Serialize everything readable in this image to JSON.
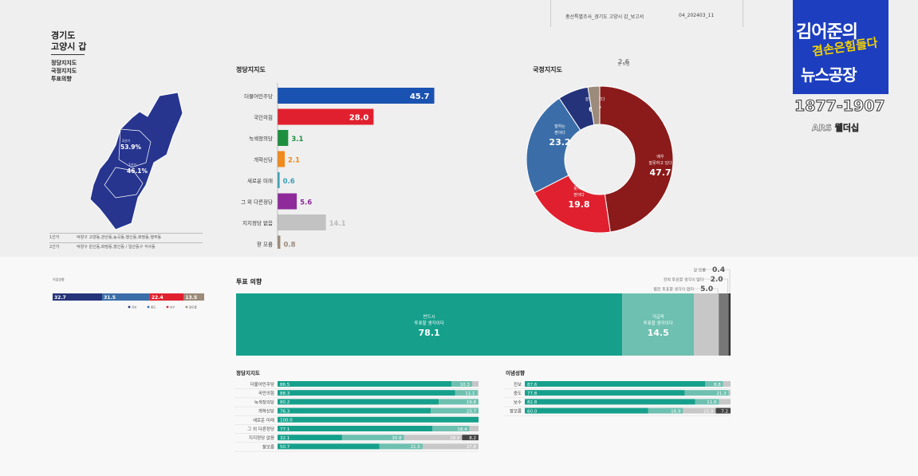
{
  "header": {
    "report_title": "총선특별조사_경기도 고양시 갑_보고서",
    "report_code": "04_202403_11"
  },
  "region": {
    "title_line1": "경기도",
    "title_line2": "고양시 갑",
    "sub_items": [
      "정당지지도",
      "국정지지도",
      "투표의향"
    ]
  },
  "map": {
    "labels": [
      {
        "name": "2선거",
        "value": "53.9%"
      },
      {
        "name": "1선거",
        "value": "46.1%"
      }
    ],
    "table": [
      {
        "col": "1선거",
        "desc": "덕양구 고양동,관산동,능곡동,행신동,화정동,행주동"
      },
      {
        "col": "2선거",
        "desc": "덕양구 원신동,화정동,행신동 / 일산동구 식사동"
      }
    ]
  },
  "logo": {
    "line1": "김어준의",
    "line2": "겸손은힘들다",
    "line3": "뉴스공장",
    "years": "1877-1907",
    "ars": "ARS 웰더십"
  },
  "colors": {
    "blue": "#1a52b2",
    "red": "#e0202e",
    "green": "#1e8f3e",
    "orange": "#f08a1c",
    "teal_small": "#3aa0b6",
    "purple": "#8e2a9a",
    "gray": "#c2c2c2",
    "brown": "#9c8a7a",
    "teal": "#16a08c",
    "light_teal": "#6ec0b0",
    "darkred": "#8b1a1a",
    "steelblue": "#3b6ea8",
    "navy": "#24337a"
  },
  "chart_data": [
    {
      "type": "bar",
      "title": "정당지지도",
      "orientation": "horizontal",
      "categories": [
        "더불어민주당",
        "국민의힘",
        "녹색정의당",
        "개혁신당",
        "새로운 미래",
        "그 외 다른정당",
        "지지정당 없음",
        "잘 모름"
      ],
      "values": [
        45.7,
        28.0,
        3.1,
        2.1,
        0.6,
        5.6,
        14.1,
        0.8
      ],
      "value_labels": [
        "45.7",
        "28.0",
        "3.1",
        "2.1",
        "0.6",
        "5.6",
        "14.1",
        "0.8"
      ],
      "colors": [
        "#1a52b2",
        "#e0202e",
        "#1e8f3e",
        "#f08a1c",
        "#3aa0b6",
        "#8e2a9a",
        "#c2c2c2",
        "#9c8a7a"
      ]
    },
    {
      "type": "pie",
      "title": "국정지지도",
      "slices": [
        {
          "label": "매우 잘못하고 있다",
          "value": 47.7,
          "display": "47.7",
          "color": "#8b1a1a"
        },
        {
          "label": "못하는 편이다",
          "value": 19.8,
          "display": "19.8",
          "color": "#e0202e"
        },
        {
          "label": "잘하는 편이다",
          "value": 23.2,
          "display": "23.2",
          "color": "#3b6ea8"
        },
        {
          "label": "매우 잘하고 있다",
          "value": 6.7,
          "display": "6.7",
          "color": "#24337a"
        },
        {
          "label": "잘 모름",
          "value": 2.6,
          "display": "2.6",
          "color": "#9c8a7a"
        }
      ]
    },
    {
      "type": "bar",
      "title": "투표 의향",
      "stacked": true,
      "segments": [
        {
          "label": "반드시 투표할 생각이다",
          "value": 78.1,
          "display": "78.1",
          "color": "#16a08c"
        },
        {
          "label": "가급적 투표할 생각이다",
          "value": 14.5,
          "display": "14.5",
          "color": "#6ec0b0"
        },
        {
          "label": "별로 투표할 생각이 없다",
          "value": 5.0,
          "display": "5.0",
          "color": "#c7c7c7"
        },
        {
          "label": "전혀 투표할 생각이 없다",
          "value": 2.0,
          "display": "2.0",
          "color": "#777777"
        },
        {
          "label": "잘 모름",
          "value": 0.4,
          "display": "0.4",
          "color": "#333333"
        }
      ]
    },
    {
      "type": "bar",
      "title": "이념성향",
      "stacked": true,
      "values": [
        32.7,
        31.5,
        22.4,
        13.5
      ],
      "colors": [
        "#24337a",
        "#3b6ea8",
        "#e0202e",
        "#9c8a7a"
      ],
      "display": [
        "32.7",
        "31.5",
        "22.4",
        "13.5"
      ],
      "legend": [
        "진보",
        "중도",
        "보수",
        "잘모름"
      ]
    },
    {
      "type": "bar",
      "title": "정당지지도",
      "stacked": true,
      "categories": [
        "더불어민주당",
        "국민의힘",
        "녹색정의당",
        "개혁신당",
        "새로운 미래",
        "그 외 다른정당",
        "지지정당 없음",
        "잘모름"
      ],
      "series": [
        {
          "values": [
            86.5,
            88.3,
            80.2,
            76.3,
            100.0,
            77.1,
            32.1,
            50.7
          ],
          "display": [
            "86.5",
            "88.3",
            "80.2",
            "76.3",
            "100.0",
            "77.1",
            "32.1",
            "50.7"
          ]
        },
        {
          "values": [
            10.3,
            11.1,
            19.8,
            23.7,
            0,
            18.4,
            30.8,
            21.5
          ],
          "display": [
            "10.3",
            "11.1",
            "19.8",
            "23.7",
            "",
            "18.4",
            "30.8",
            "21.5"
          ]
        },
        {
          "values": [
            3.2,
            0.6,
            0,
            0,
            0,
            4.5,
            28.9,
            27.8
          ],
          "display": [
            "",
            "",
            "",
            "",
            "",
            "",
            "28.9",
            "27.8"
          ]
        },
        {
          "values": [
            0,
            0,
            0,
            0,
            0,
            0,
            8.2,
            0
          ],
          "display": [
            "",
            "",
            "",
            "",
            "",
            "",
            "8.2",
            ""
          ]
        }
      ]
    },
    {
      "type": "bar",
      "title": "이념성향",
      "stacked": true,
      "categories": [
        "진보",
        "중도",
        "보수",
        "잘모름"
      ],
      "series": [
        {
          "values": [
            87.6,
            77.8,
            82.8,
            60.0
          ],
          "display": [
            "87.6",
            "77.8",
            "82.8",
            "60.0"
          ]
        },
        {
          "values": [
            8.8,
            21.3,
            11.6,
            16.9
          ],
          "display": [
            "8.8",
            "21.3",
            "11.6",
            "16.9"
          ]
        },
        {
          "values": [
            3.6,
            0.9,
            5.6,
            15.9
          ],
          "display": [
            "",
            "",
            "",
            "15.9"
          ]
        },
        {
          "values": [
            0,
            0,
            0,
            7.2
          ],
          "display": [
            "",
            "",
            "",
            "7.2"
          ]
        }
      ]
    }
  ]
}
